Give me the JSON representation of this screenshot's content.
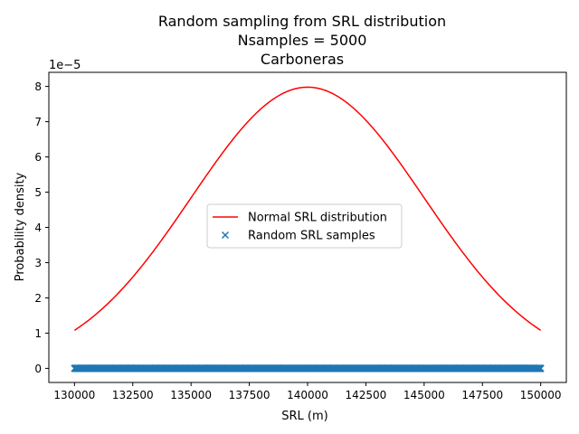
{
  "chart_data": {
    "type": "scatter",
    "title_lines": [
      "Random sampling from SRL distribution",
      "Nsamples = 5000",
      "Carboneras"
    ],
    "xlabel": "SRL (m)",
    "ylabel": "Probability density",
    "y_offset_text": "1e−5",
    "xlim": [
      128900,
      151100
    ],
    "ylim": [
      -4e-06,
      8.4e-05
    ],
    "x_ticks": [
      130000,
      132500,
      135000,
      137500,
      140000,
      142500,
      145000,
      147500,
      150000
    ],
    "y_ticks": [
      0,
      1e-05,
      2e-05,
      3e-05,
      4e-05,
      5e-05,
      6e-05,
      7e-05,
      8e-05
    ],
    "y_tick_labels": [
      "0",
      "1",
      "2",
      "3",
      "4",
      "5",
      "6",
      "7",
      "8"
    ],
    "grid": false,
    "legend_position": "center",
    "series": [
      {
        "name": "Normal SRL distribution",
        "kind": "line",
        "color": "#ff0000",
        "distribution": "normal",
        "mean": 140000,
        "std": 5000,
        "x_range": [
          130000,
          150000
        ],
        "peak_value": 7.98e-05
      },
      {
        "name": "Random SRL samples",
        "kind": "scatter",
        "marker": "x",
        "color": "#1f77b4",
        "n_samples": 5000,
        "x_range": [
          130000,
          150000
        ],
        "y_value": 0
      }
    ]
  }
}
